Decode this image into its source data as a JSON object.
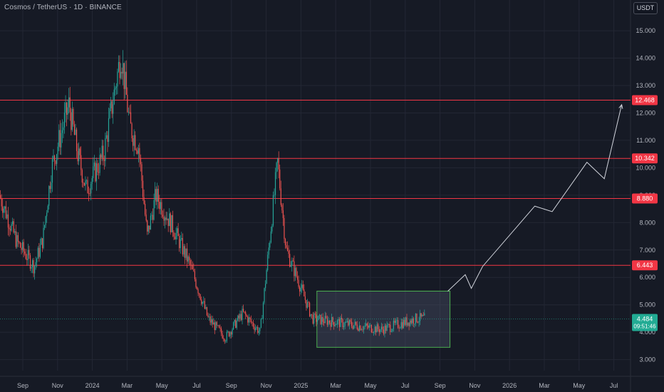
{
  "header": {
    "symbol_title": "Cosmos / TetherUS · 1D · BINANCE",
    "currency_label": "USDT"
  },
  "colors": {
    "background": "#161a25",
    "grid": "#232734",
    "axis_text": "#b2b5be",
    "up": "#26a69a",
    "down": "#ef5350",
    "level_line": "#f23645",
    "level_label_bg": "#f23645",
    "current_price_bg": "#22ab94",
    "box_stroke": "#4caf50",
    "box_fill": "rgba(82,93,114,0.35)",
    "projection_line": "#d1d4dc"
  },
  "chart_data": {
    "type": "candlestick",
    "x_labels": [
      "Sep",
      "Nov",
      "2024",
      "Mar",
      "May",
      "Jul",
      "Sep",
      "Nov",
      "2025",
      "Mar",
      "May",
      "Jul",
      "Sep",
      "Nov",
      "2026",
      "Mar",
      "May",
      "Jul"
    ],
    "y_ticks": [
      "3.000",
      "4.000",
      "5.000",
      "6.000",
      "7.000",
      "8.000",
      "9.000",
      "10.000",
      "11.000",
      "12.000",
      "13.000",
      "14.000",
      "15.000"
    ],
    "ylim": [
      2.6,
      15.6
    ],
    "horizontal_levels": [
      "12.468",
      "10.342",
      "8.880",
      "6.443"
    ],
    "current_price": "4.484",
    "countdown": "09:51:46",
    "price_anchors": [
      [
        "Aug 2023",
        9.0
      ],
      [
        "Sep 2023",
        7.3
      ],
      [
        "Oct 2023",
        6.4
      ],
      [
        "Oct 2023",
        7.4
      ],
      [
        "Nov 2023",
        10.0
      ],
      [
        "Dec 2023",
        12.3
      ],
      [
        "Dec 2023",
        10.5
      ],
      [
        "Jan 2024",
        9.2
      ],
      [
        "Feb 2024",
        10.5
      ],
      [
        "Mar 2024",
        14.2
      ],
      [
        "Mar 2024",
        11.5
      ],
      [
        "Apr 2024",
        10.8
      ],
      [
        "Apr 2024",
        7.5
      ],
      [
        "May 2024",
        9.0
      ],
      [
        "Jun 2024",
        7.8
      ],
      [
        "Jul 2024",
        6.4
      ],
      [
        "Aug 2024",
        4.5
      ],
      [
        "Sep 2024",
        3.8
      ],
      [
        "Oct 2024",
        4.7
      ],
      [
        "Nov 2024",
        4.0
      ],
      [
        "Dec 2024",
        10.2
      ],
      [
        "Dec 2024",
        7.0
      ],
      [
        "Jan 2025",
        6.2
      ],
      [
        "Feb 2025",
        4.5
      ],
      [
        "Apr 2025",
        4.3
      ],
      [
        "Jun 2025",
        4.1
      ],
      [
        "Aug 2025",
        4.5
      ]
    ],
    "range_box": {
      "from": "Feb 2025",
      "to": "Sep 2025",
      "low": 3.45,
      "high": 5.5
    },
    "projection_path": [
      [
        "Sep 2025",
        5.5
      ],
      [
        "Oct 2025",
        6.1
      ],
      [
        "Oct 2025",
        5.6
      ],
      [
        "Nov 2025",
        6.4
      ],
      [
        "Feb 2026",
        8.6
      ],
      [
        "Mar 2026",
        8.4
      ],
      [
        "May 2026",
        10.2
      ],
      [
        "Jun 2026",
        9.6
      ],
      [
        "Jul 2026",
        12.3
      ]
    ]
  }
}
